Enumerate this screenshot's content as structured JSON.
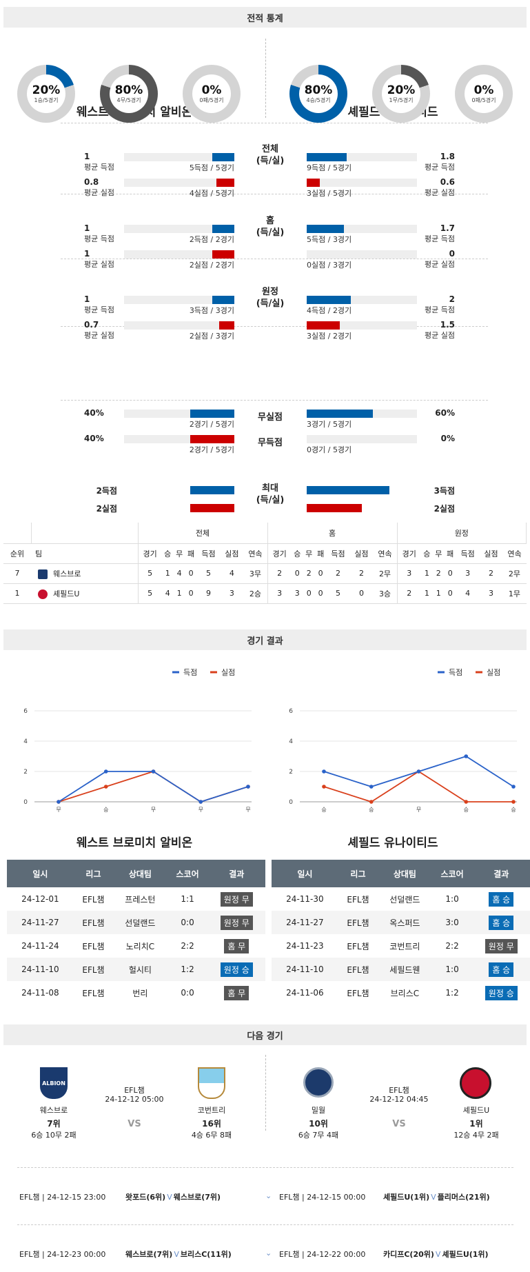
{
  "sections": {
    "stats": "전적 통계",
    "results": "경기 결과",
    "next": "다음 경기"
  },
  "teams": {
    "home": "웨스트 브로미치 알비온",
    "away": "셰필드 유나이티드"
  },
  "donuts": {
    "home": [
      {
        "pct": "20%",
        "sub": "1승/5경기",
        "value": 0.2,
        "color": "#0060a8"
      },
      {
        "pct": "80%",
        "sub": "4무/5경기",
        "value": 0.8,
        "color": "#555555"
      },
      {
        "pct": "0%",
        "sub": "0패/5경기",
        "value": 0,
        "color": "#cc0000"
      }
    ],
    "away": [
      {
        "pct": "80%",
        "sub": "4승/5경기",
        "value": 0.8,
        "color": "#0060a8"
      },
      {
        "pct": "20%",
        "sub": "1무/5경기",
        "value": 0.2,
        "color": "#555555"
      },
      {
        "pct": "0%",
        "sub": "0패/5경기",
        "value": 0,
        "color": "#cc0000"
      }
    ]
  },
  "stat_groups": [
    {
      "label": "전체\n(득/실)",
      "home": [
        {
          "v": "1",
          "s": "평균 득점",
          "cap": "5득점 / 5경기",
          "frac": 0.2,
          "c": "#0060a8"
        },
        {
          "v": "0.8",
          "s": "평균 실점",
          "cap": "4실점 / 5경기",
          "frac": 0.16,
          "c": "#cc0000"
        }
      ],
      "away": [
        {
          "v": "1.8",
          "s": "평균 득점",
          "cap": "9득점 / 5경기",
          "frac": 0.36,
          "c": "#0060a8"
        },
        {
          "v": "0.6",
          "s": "평균 실점",
          "cap": "3실점 / 5경기",
          "frac": 0.12,
          "c": "#cc0000"
        }
      ]
    },
    {
      "label": "홈\n(득/실)",
      "home": [
        {
          "v": "1",
          "s": "평균 득점",
          "cap": "2득점 / 2경기",
          "frac": 0.2,
          "c": "#0060a8"
        },
        {
          "v": "1",
          "s": "평균 실점",
          "cap": "2실점 / 2경기",
          "frac": 0.2,
          "c": "#cc0000"
        }
      ],
      "away": [
        {
          "v": "1.7",
          "s": "평균 득점",
          "cap": "5득점 / 3경기",
          "frac": 0.34,
          "c": "#0060a8"
        },
        {
          "v": "0",
          "s": "평균 실점",
          "cap": "0실점 / 3경기",
          "frac": 0,
          "c": "#cc0000"
        }
      ]
    },
    {
      "label": "원정\n(득/실)",
      "home": [
        {
          "v": "1",
          "s": "평균 득점",
          "cap": "3득점 / 3경기",
          "frac": 0.2,
          "c": "#0060a8"
        },
        {
          "v": "0.7",
          "s": "평균 실점",
          "cap": "2실점 / 3경기",
          "frac": 0.14,
          "c": "#cc0000"
        }
      ],
      "away": [
        {
          "v": "2",
          "s": "평균 득점",
          "cap": "4득점 / 2경기",
          "frac": 0.4,
          "c": "#0060a8"
        },
        {
          "v": "1.5",
          "s": "평균 실점",
          "cap": "3실점 / 2경기",
          "frac": 0.3,
          "c": "#cc0000"
        }
      ]
    }
  ],
  "cleans": [
    {
      "label": "무실점",
      "home": {
        "v": "40%",
        "cap": "2경기 / 5경기",
        "frac": 0.4,
        "c": "#0060a8"
      },
      "away": {
        "v": "60%",
        "cap": "3경기 / 5경기",
        "frac": 0.6,
        "c": "#0060a8"
      }
    },
    {
      "label": "무득점",
      "home": {
        "v": "40%",
        "cap": "2경기 / 5경기",
        "frac": 0.4,
        "c": "#cc0000"
      },
      "away": {
        "v": "0%",
        "cap": "0경기 / 5경기",
        "frac": 0,
        "c": "#cc0000"
      }
    }
  ],
  "maxes": {
    "label": "최대\n(득/실)",
    "home": [
      {
        "v": "2득점",
        "frac": 0.4,
        "c": "#0060a8"
      },
      {
        "v": "2실점",
        "frac": 0.4,
        "c": "#cc0000"
      }
    ],
    "away": [
      {
        "v": "3득점",
        "frac": 0.6,
        "c": "#0060a8"
      },
      {
        "v": "2실점",
        "frac": 0.4,
        "c": "#cc0000"
      }
    ]
  },
  "standings": {
    "groups": [
      "전체",
      "홈",
      "원정"
    ],
    "cols": [
      "순위",
      "팀",
      "경기",
      "승",
      "무",
      "패",
      "득점",
      "실점",
      "연속",
      "경기",
      "승",
      "무",
      "패",
      "득점",
      "실점",
      "연속",
      "경기",
      "승",
      "무",
      "패",
      "득점",
      "실점",
      "연속"
    ],
    "rows": [
      [
        "7",
        "웨스브로",
        "5",
        "1",
        "4",
        "0",
        "5",
        "4",
        "3무",
        "2",
        "0",
        "2",
        "0",
        "2",
        "2",
        "2무",
        "3",
        "1",
        "2",
        "0",
        "3",
        "2",
        "2무"
      ],
      [
        "1",
        "셰필드U",
        "5",
        "4",
        "1",
        "0",
        "9",
        "3",
        "2승",
        "3",
        "3",
        "0",
        "0",
        "5",
        "0",
        "3승",
        "2",
        "1",
        "1",
        "0",
        "4",
        "3",
        "1무"
      ]
    ]
  },
  "legend": {
    "scored": "득점",
    "conceded": "실점"
  },
  "chart_data": [
    {
      "type": "line",
      "x": [
        "무",
        "승",
        "무",
        "무",
        "무"
      ],
      "ylim": [
        0,
        6
      ],
      "yticks": [
        "0",
        "2",
        "4",
        "6"
      ],
      "series": [
        {
          "name": "득점",
          "values": [
            0,
            2,
            2,
            0,
            1
          ],
          "color": "#2a62c9"
        },
        {
          "name": "실점",
          "values": [
            0,
            1,
            2,
            0,
            1
          ],
          "color": "#d9401c"
        }
      ]
    },
    {
      "type": "line",
      "x": [
        "승",
        "승",
        "무",
        "승",
        "승"
      ],
      "ylim": [
        0,
        6
      ],
      "yticks": [
        "0",
        "2",
        "4",
        "6"
      ],
      "series": [
        {
          "name": "득점",
          "values": [
            2,
            1,
            2,
            3,
            1
          ],
          "color": "#2a62c9"
        },
        {
          "name": "실점",
          "values": [
            1,
            0,
            2,
            0,
            0
          ],
          "color": "#d9401c"
        }
      ]
    }
  ],
  "results_head": [
    "일시",
    "리그",
    "상대팀",
    "스코어",
    "결과"
  ],
  "home_results": [
    [
      "24-12-01",
      "EFL챔",
      "프레스턴",
      "1:1",
      "원정 무",
      "#555555"
    ],
    [
      "24-11-27",
      "EFL챔",
      "선덜랜드",
      "0:0",
      "원정 무",
      "#555555"
    ],
    [
      "24-11-24",
      "EFL챔",
      "노리치C",
      "2:2",
      "홈 무",
      "#555555"
    ],
    [
      "24-11-10",
      "EFL챔",
      "헐시티",
      "1:2",
      "원정 승",
      "#0a6cb5"
    ],
    [
      "24-11-08",
      "EFL챔",
      "번리",
      "0:0",
      "홈 무",
      "#555555"
    ]
  ],
  "away_results": [
    [
      "24-11-30",
      "EFL챔",
      "선덜랜드",
      "1:0",
      "홈 승",
      "#0a6cb5"
    ],
    [
      "24-11-27",
      "EFL챔",
      "옥스퍼드",
      "3:0",
      "홈 승",
      "#0a6cb5"
    ],
    [
      "24-11-23",
      "EFL챔",
      "코번트리",
      "2:2",
      "원정 무",
      "#555555"
    ],
    [
      "24-11-10",
      "EFL챔",
      "세필드웬",
      "1:0",
      "홈 승",
      "#0a6cb5"
    ],
    [
      "24-11-06",
      "EFL챔",
      "브리스C",
      "1:2",
      "원정 승",
      "#0a6cb5"
    ]
  ],
  "next": [
    {
      "league": "EFL챔",
      "time": "24-12-12 05:00",
      "a": {
        "name": "웨스브로",
        "rank": "7위",
        "rec": "6승 10무 2패",
        "logo": "ALBION"
      },
      "b": {
        "name": "코번트리",
        "rank": "16위",
        "rec": "4승 6무 8패",
        "logo": ""
      }
    },
    {
      "league": "EFL챔",
      "time": "24-12-12 04:45",
      "a": {
        "name": "밀월",
        "rank": "10위",
        "rec": "6승 7무 4패",
        "logo": ""
      },
      "b": {
        "name": "셰필드U",
        "rank": "1위",
        "rec": "12승 4무 2패",
        "logo": ""
      }
    }
  ],
  "vs": "VS",
  "upcoming": [
    [
      "EFL챔 | 24-12-15 23:00",
      "왓포드(6위)",
      "V",
      "웨스브로(7위)",
      "EFL챔 | 24-12-15 00:00",
      "셰필드U(1위)",
      "V",
      "플리머스(21위)"
    ],
    [
      "EFL챔 | 24-12-23 00:00",
      "웨스브로(7위)",
      "V",
      "브리스C(11위)",
      "EFL챔 | 24-12-22 00:00",
      "카디프C(20위)",
      "V",
      "셰필드U(1위)"
    ]
  ]
}
